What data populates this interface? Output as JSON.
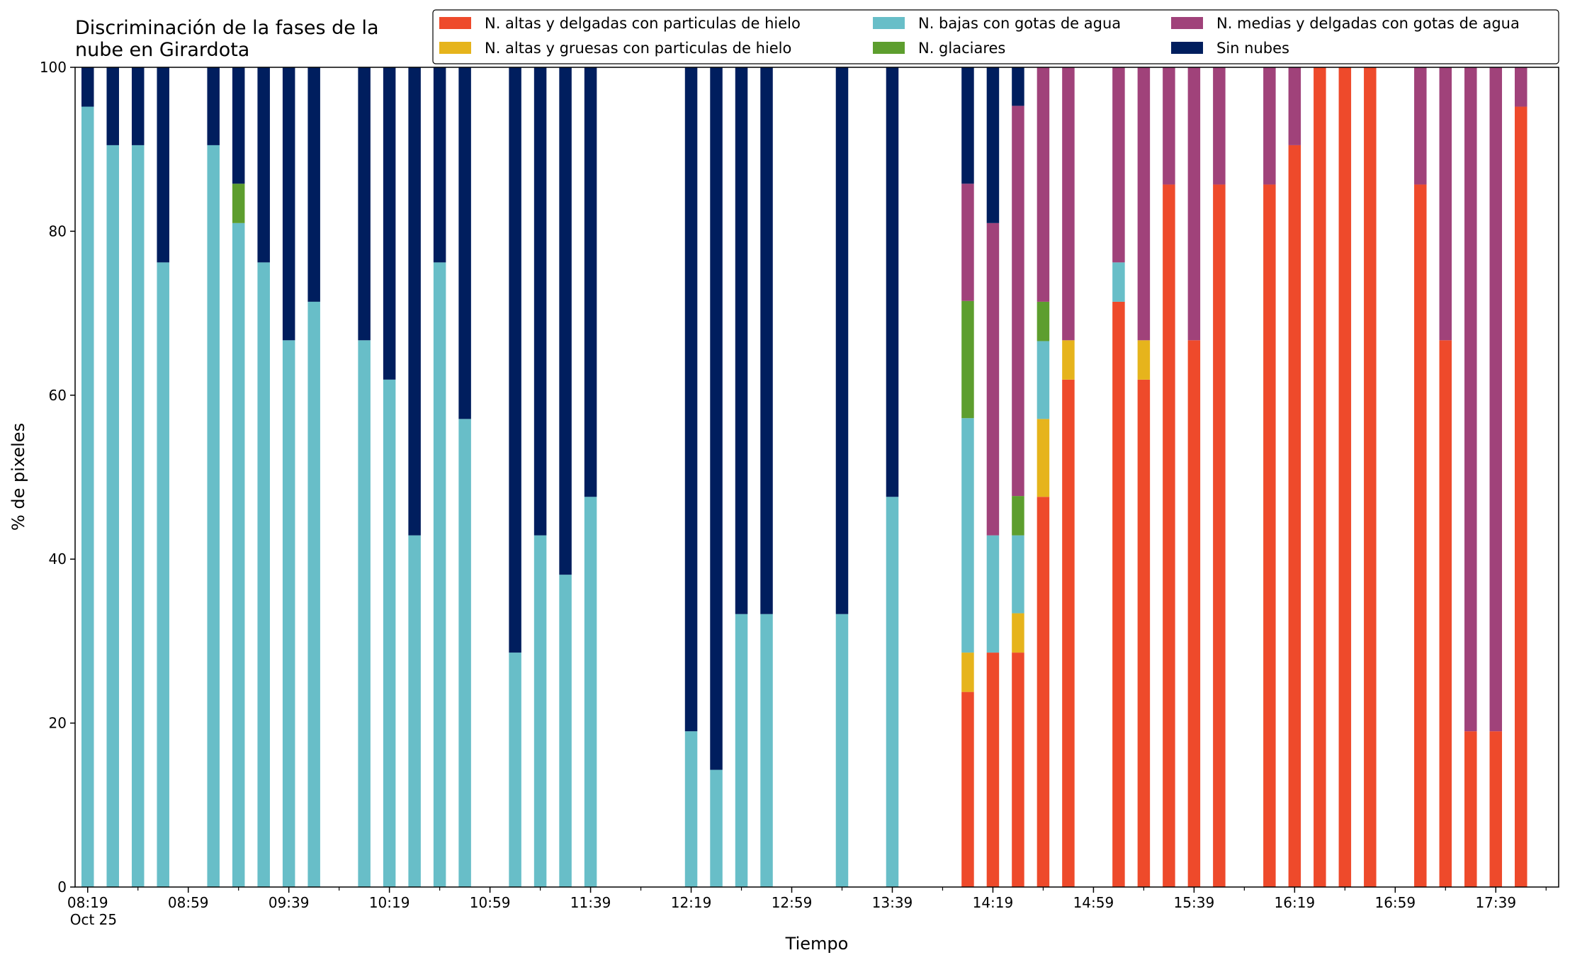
{
  "chart_data": {
    "type": "bar",
    "stacked": true,
    "title": "Discriminación de la fases de la\nnube en Girardota",
    "xlabel": "Tiempo",
    "ylabel": "% de pixeles",
    "ylim": [
      0,
      100
    ],
    "yticks": [
      0,
      20,
      40,
      60,
      80,
      100
    ],
    "xlim": [
      "08:14",
      "18:04"
    ],
    "xticks": [
      "08:19",
      "08:59",
      "09:39",
      "10:19",
      "10:59",
      "11:39",
      "12:19",
      "12:59",
      "13:39",
      "14:19",
      "14:59",
      "15:39",
      "16:19",
      "16:59",
      "17:39"
    ],
    "date_label": "Oct 25",
    "grid": false,
    "legend_position": "top-right",
    "series": [
      {
        "name": "N. altas y delgadas con particulas de hielo",
        "color": "#ee4a2b"
      },
      {
        "name": "N. altas y gruesas con particulas de hielo",
        "color": "#e6b41c"
      },
      {
        "name": "N. bajas con gotas de agua",
        "color": "#68bec8"
      },
      {
        "name": "N. glaciares",
        "color": "#5d9e2e"
      },
      {
        "name": "N. medias y delgadas con gotas de agua",
        "color": "#a0427a"
      },
      {
        "name": "Sin nubes",
        "color": "#001e5e"
      }
    ],
    "bars": [
      {
        "t": "08:19",
        "values": [
          0,
          0,
          95.2,
          0,
          0,
          4.8
        ]
      },
      {
        "t": "08:29",
        "values": [
          0,
          0,
          90.5,
          0,
          0,
          9.5
        ]
      },
      {
        "t": "08:39",
        "values": [
          0,
          0,
          90.5,
          0,
          0,
          9.5
        ]
      },
      {
        "t": "08:49",
        "values": [
          0,
          0,
          76.2,
          0,
          0,
          23.8
        ]
      },
      {
        "t": "09:09",
        "values": [
          0,
          0,
          90.5,
          0,
          0,
          9.5
        ]
      },
      {
        "t": "09:19",
        "values": [
          0,
          0,
          81.0,
          4.8,
          0,
          14.2
        ]
      },
      {
        "t": "09:29",
        "values": [
          0,
          0,
          76.2,
          0,
          0,
          23.8
        ]
      },
      {
        "t": "09:39",
        "values": [
          0,
          0,
          66.7,
          0,
          0,
          33.3
        ]
      },
      {
        "t": "09:49",
        "values": [
          0,
          0,
          71.4,
          0,
          0,
          28.6
        ]
      },
      {
        "t": "10:09",
        "values": [
          0,
          0,
          66.7,
          0,
          0,
          33.3
        ]
      },
      {
        "t": "10:19",
        "values": [
          0,
          0,
          61.9,
          0,
          0,
          38.1
        ]
      },
      {
        "t": "10:29",
        "values": [
          0,
          0,
          42.9,
          0,
          0,
          57.1
        ]
      },
      {
        "t": "10:39",
        "values": [
          0,
          0,
          76.2,
          0,
          0,
          23.8
        ]
      },
      {
        "t": "10:49",
        "values": [
          0,
          0,
          57.1,
          0,
          0,
          42.9
        ]
      },
      {
        "t": "11:09",
        "values": [
          0,
          0,
          28.6,
          0,
          0,
          71.4
        ]
      },
      {
        "t": "11:19",
        "values": [
          0,
          0,
          42.9,
          0,
          0,
          57.1
        ]
      },
      {
        "t": "11:29",
        "values": [
          0,
          0,
          38.1,
          0,
          0,
          61.9
        ]
      },
      {
        "t": "11:39",
        "values": [
          0,
          0,
          47.6,
          0,
          0,
          52.4
        ]
      },
      {
        "t": "12:19",
        "values": [
          0,
          0,
          19.0,
          0,
          0,
          81.0
        ]
      },
      {
        "t": "12:29",
        "values": [
          0,
          0,
          14.3,
          0,
          0,
          85.7
        ]
      },
      {
        "t": "12:39",
        "values": [
          0,
          0,
          33.3,
          0,
          0,
          66.7
        ]
      },
      {
        "t": "12:49",
        "values": [
          0,
          0,
          33.3,
          0,
          0,
          66.7
        ]
      },
      {
        "t": "13:19",
        "values": [
          0,
          0,
          33.3,
          0,
          0,
          66.7
        ]
      },
      {
        "t": "13:39",
        "values": [
          0,
          0,
          47.6,
          0,
          0,
          52.4
        ]
      },
      {
        "t": "14:09",
        "values": [
          23.8,
          4.8,
          28.6,
          14.3,
          14.3,
          14.2
        ]
      },
      {
        "t": "14:19",
        "values": [
          28.6,
          0,
          14.3,
          0,
          38.1,
          19.0
        ]
      },
      {
        "t": "14:29",
        "values": [
          28.6,
          4.8,
          9.5,
          4.8,
          47.6,
          4.7
        ]
      },
      {
        "t": "14:39",
        "values": [
          47.6,
          9.5,
          9.5,
          4.8,
          28.6,
          0
        ]
      },
      {
        "t": "14:49",
        "values": [
          61.9,
          4.8,
          0,
          0,
          33.3,
          0
        ]
      },
      {
        "t": "15:09",
        "values": [
          71.4,
          0,
          4.8,
          0,
          23.8,
          0
        ]
      },
      {
        "t": "15:19",
        "values": [
          61.9,
          4.8,
          0,
          0,
          33.3,
          0
        ]
      },
      {
        "t": "15:29",
        "values": [
          85.7,
          0,
          0,
          0,
          14.3,
          0
        ]
      },
      {
        "t": "15:39",
        "values": [
          66.7,
          0,
          0,
          0,
          33.3,
          0
        ]
      },
      {
        "t": "15:49",
        "values": [
          85.7,
          0,
          0,
          0,
          14.3,
          0
        ]
      },
      {
        "t": "16:09",
        "values": [
          85.7,
          0,
          0,
          0,
          14.3,
          0
        ]
      },
      {
        "t": "16:19",
        "values": [
          90.5,
          0,
          0,
          0,
          9.5,
          0
        ]
      },
      {
        "t": "16:29",
        "values": [
          100,
          0,
          0,
          0,
          0,
          0
        ]
      },
      {
        "t": "16:39",
        "values": [
          100,
          0,
          0,
          0,
          0,
          0
        ]
      },
      {
        "t": "16:49",
        "values": [
          100,
          0,
          0,
          0,
          0,
          0
        ]
      },
      {
        "t": "17:09",
        "values": [
          85.7,
          0,
          0,
          0,
          14.3,
          0
        ]
      },
      {
        "t": "17:19",
        "values": [
          66.7,
          0,
          0,
          0,
          33.3,
          0
        ]
      },
      {
        "t": "17:29",
        "values": [
          19.0,
          0,
          0,
          0,
          81.0,
          0
        ]
      },
      {
        "t": "17:39",
        "values": [
          19.0,
          0,
          0,
          0,
          81.0,
          0
        ]
      },
      {
        "t": "17:49",
        "values": [
          95.2,
          0,
          0,
          0,
          4.8,
          0
        ]
      }
    ]
  }
}
